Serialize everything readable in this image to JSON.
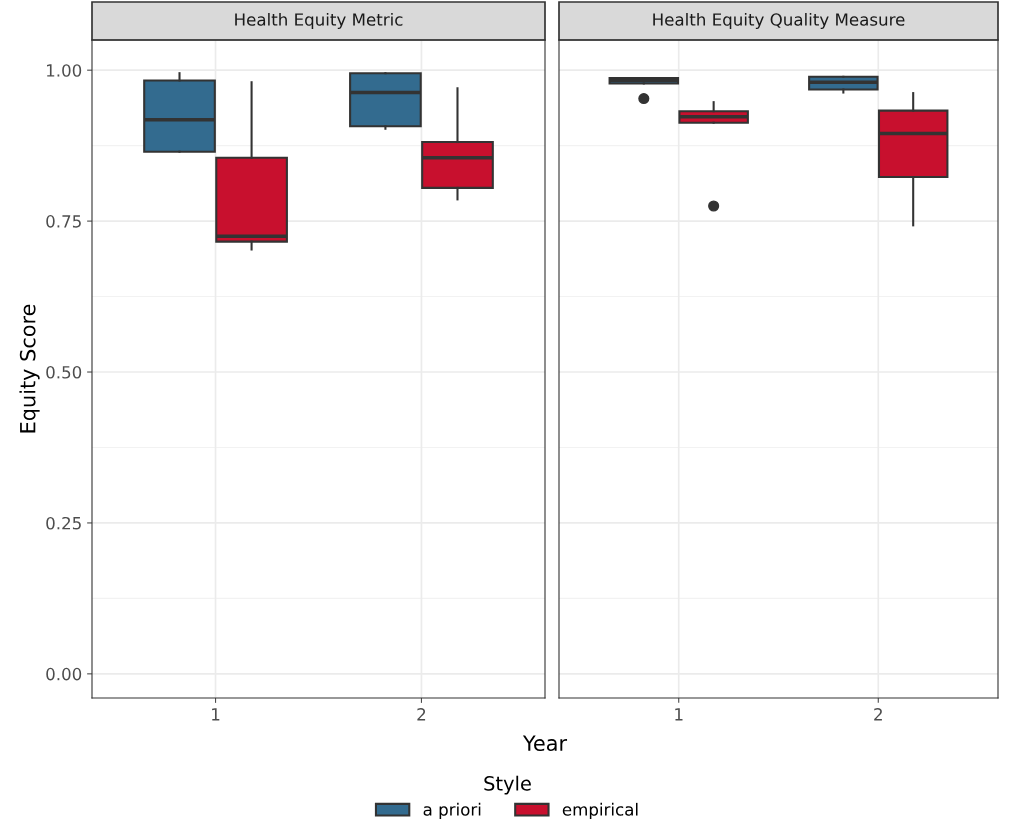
{
  "chart_data": [
    {
      "type": "box",
      "title": "Health Equity Metric",
      "xlabel": "Year",
      "ylabel": "Equity Score",
      "legend_title": "Style",
      "legend": "bottom",
      "grid": true,
      "categories": [
        "1",
        "2"
      ],
      "ylim": [
        -0.04,
        1.05
      ],
      "yticks": [
        {
          "value": 0,
          "label": "0.00"
        },
        {
          "value": 0.25,
          "label": "0.25"
        },
        {
          "value": 0.5,
          "label": "0.50"
        },
        {
          "value": 0.75,
          "label": "0.75"
        },
        {
          "value": 1,
          "label": "1.00"
        }
      ],
      "series": [
        {
          "name": "a priori",
          "color": "#336b8f",
          "boxes": [
            {
              "low": 0.865,
              "q1": 0.865,
              "median": 0.918,
              "q3": 0.983,
              "high": 0.995
            },
            {
              "low": 0.903,
              "q1": 0.907,
              "median": 0.963,
              "q3": 0.995,
              "high": 0.995
            }
          ]
        },
        {
          "name": "empirical",
          "color": "#c8102e",
          "boxes": [
            {
              "low": 0.703,
              "q1": 0.716,
              "median": 0.725,
              "q3": 0.855,
              "high": 0.98
            },
            {
              "low": 0.786,
              "q1": 0.805,
              "median": 0.855,
              "q3": 0.881,
              "high": 0.97
            }
          ]
        }
      ]
    },
    {
      "type": "box",
      "title": "Health Equity Quality Measure",
      "grid": true,
      "tick_labels": "x",
      "categories": [
        "1",
        "2"
      ],
      "ylim": [
        -0.04,
        1.05
      ],
      "yticks": [
        0,
        0.25,
        0.5,
        0.75,
        1
      ],
      "series": [
        {
          "color": "#336b8f",
          "boxes": [
            {
              "low": 0.978,
              "q1": 0.978,
              "median": 0.983,
              "q3": 0.987,
              "high": 0.987,
              "outliers": [
                0.953
              ]
            },
            {
              "low": 0.963,
              "q1": 0.968,
              "median": 0.98,
              "q3": 0.989,
              "high": 0.989
            }
          ]
        },
        {
          "color": "#c8102e",
          "boxes": [
            {
              "low": 0.913,
              "q1": 0.913,
              "median": 0.923,
              "q3": 0.932,
              "high": 0.947,
              "outliers": [
                0.775
              ]
            },
            {
              "low": 0.743,
              "q1": 0.823,
              "median": 0.895,
              "q3": 0.933,
              "high": 0.962
            }
          ]
        }
      ]
    }
  ]
}
